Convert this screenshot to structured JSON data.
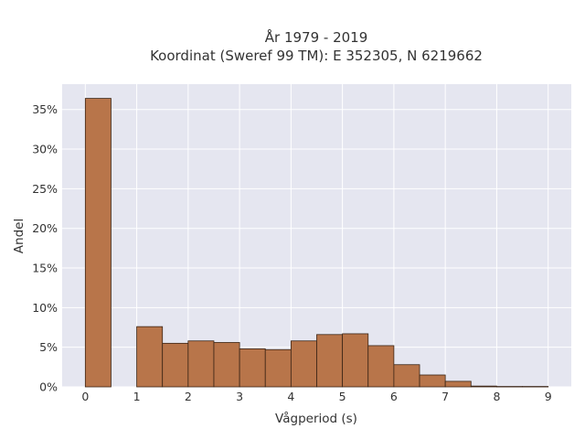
{
  "chart_data": {
    "type": "bar",
    "title_line1": "År 1979 - 2019",
    "title_line2": "Koordinat (Sweref 99 TM): E 352305, N 6219662",
    "xlabel": "Vågperiod (s)",
    "ylabel": "Andel",
    "x_tick_labels": [
      "0",
      "1",
      "2",
      "3",
      "4",
      "5",
      "6",
      "7",
      "8",
      "9"
    ],
    "y_tick_labels": [
      "0%",
      "5%",
      "10%",
      "15%",
      "20%",
      "25%",
      "30%",
      "35%"
    ],
    "xlim": [
      -0.45,
      9.45
    ],
    "ylim": [
      0,
      38.2
    ],
    "bins": [
      {
        "x0": 0.0,
        "x1": 0.5,
        "value": 36.4
      },
      {
        "x0": 1.0,
        "x1": 1.5,
        "value": 7.6
      },
      {
        "x0": 1.5,
        "x1": 2.0,
        "value": 5.5
      },
      {
        "x0": 2.0,
        "x1": 2.5,
        "value": 5.8
      },
      {
        "x0": 2.5,
        "x1": 3.0,
        "value": 5.6
      },
      {
        "x0": 3.0,
        "x1": 3.5,
        "value": 4.8
      },
      {
        "x0": 3.5,
        "x1": 4.0,
        "value": 4.7
      },
      {
        "x0": 4.0,
        "x1": 4.5,
        "value": 5.8
      },
      {
        "x0": 4.5,
        "x1": 5.0,
        "value": 6.6
      },
      {
        "x0": 5.0,
        "x1": 5.5,
        "value": 6.7
      },
      {
        "x0": 5.5,
        "x1": 6.0,
        "value": 5.2
      },
      {
        "x0": 6.0,
        "x1": 6.5,
        "value": 2.8
      },
      {
        "x0": 6.5,
        "x1": 7.0,
        "value": 1.5
      },
      {
        "x0": 7.0,
        "x1": 7.5,
        "value": 0.7
      },
      {
        "x0": 7.5,
        "x1": 8.0,
        "value": 0.1
      },
      {
        "x0": 8.0,
        "x1": 8.5,
        "value": 0.05
      },
      {
        "x0": 8.5,
        "x1": 9.0,
        "value": 0.05
      }
    ],
    "grid": true,
    "colors": {
      "bar_fill": "#b8754a",
      "bar_stroke": "#3a2415",
      "plot_background": "#e5e6f0",
      "grid": "#ffffff"
    }
  }
}
